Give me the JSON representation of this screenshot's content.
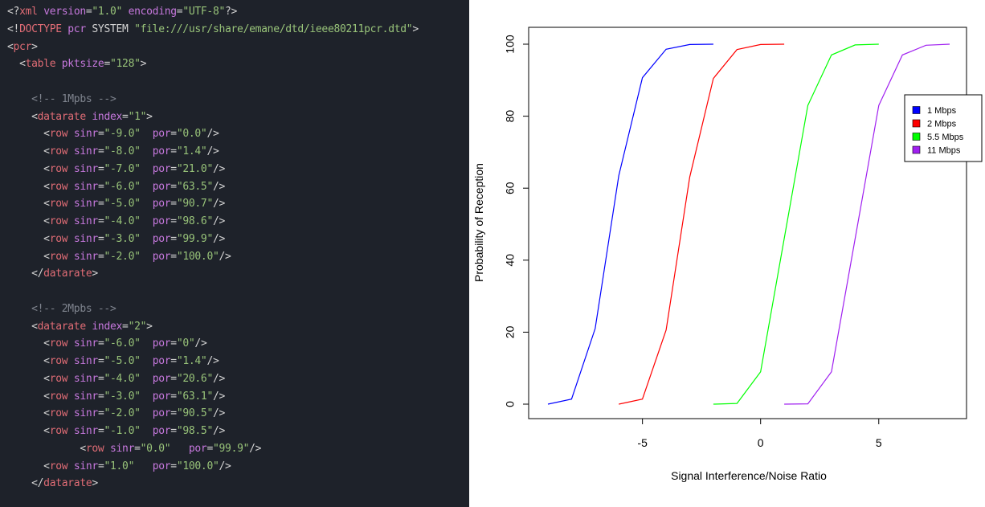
{
  "editor": {
    "lines": [
      [
        [
          "punct",
          "<?"
        ],
        [
          "tag",
          "xml"
        ],
        [
          "plain",
          " "
        ],
        [
          "attr",
          "version"
        ],
        [
          "punct",
          "="
        ],
        [
          "str",
          "\"1.0\""
        ],
        [
          "plain",
          " "
        ],
        [
          "attr",
          "encoding"
        ],
        [
          "punct",
          "="
        ],
        [
          "str",
          "\"UTF-8\""
        ],
        [
          "punct",
          "?>"
        ]
      ],
      [
        [
          "punct",
          "<!"
        ],
        [
          "tag",
          "DOCTYPE"
        ],
        [
          "plain",
          " "
        ],
        [
          "attr",
          "pcr"
        ],
        [
          "plain",
          " SYSTEM "
        ],
        [
          "str",
          "\"file:///usr/share/emane/dtd/ieee80211pcr.dtd\""
        ],
        [
          "punct",
          ">"
        ]
      ],
      [
        [
          "punct",
          "<"
        ],
        [
          "tag",
          "pcr"
        ],
        [
          "punct",
          ">"
        ]
      ],
      [
        [
          "plain",
          "  "
        ],
        [
          "punct",
          "<"
        ],
        [
          "tag",
          "table"
        ],
        [
          "plain",
          " "
        ],
        [
          "attr",
          "pktsize"
        ],
        [
          "punct",
          "="
        ],
        [
          "str",
          "\"128\""
        ],
        [
          "punct",
          ">"
        ]
      ],
      [],
      [
        [
          "plain",
          "    "
        ],
        [
          "comment",
          "<!-- 1Mpbs -->"
        ]
      ],
      [
        [
          "plain",
          "    "
        ],
        [
          "punct",
          "<"
        ],
        [
          "tag",
          "datarate"
        ],
        [
          "plain",
          " "
        ],
        [
          "attr",
          "index"
        ],
        [
          "punct",
          "="
        ],
        [
          "str",
          "\"1\""
        ],
        [
          "punct",
          ">"
        ]
      ],
      [
        [
          "plain",
          "      "
        ],
        [
          "punct",
          "<"
        ],
        [
          "tag",
          "row"
        ],
        [
          "plain",
          " "
        ],
        [
          "attr",
          "sinr"
        ],
        [
          "punct",
          "="
        ],
        [
          "str",
          "\"-9.0\""
        ],
        [
          "plain",
          "  "
        ],
        [
          "attr",
          "por"
        ],
        [
          "punct",
          "="
        ],
        [
          "str",
          "\"0.0\""
        ],
        [
          "punct",
          "/>"
        ]
      ],
      [
        [
          "plain",
          "      "
        ],
        [
          "punct",
          "<"
        ],
        [
          "tag",
          "row"
        ],
        [
          "plain",
          " "
        ],
        [
          "attr",
          "sinr"
        ],
        [
          "punct",
          "="
        ],
        [
          "str",
          "\"-8.0\""
        ],
        [
          "plain",
          "  "
        ],
        [
          "attr",
          "por"
        ],
        [
          "punct",
          "="
        ],
        [
          "str",
          "\"1.4\""
        ],
        [
          "punct",
          "/>"
        ]
      ],
      [
        [
          "plain",
          "      "
        ],
        [
          "punct",
          "<"
        ],
        [
          "tag",
          "row"
        ],
        [
          "plain",
          " "
        ],
        [
          "attr",
          "sinr"
        ],
        [
          "punct",
          "="
        ],
        [
          "str",
          "\"-7.0\""
        ],
        [
          "plain",
          "  "
        ],
        [
          "attr",
          "por"
        ],
        [
          "punct",
          "="
        ],
        [
          "str",
          "\"21.0\""
        ],
        [
          "punct",
          "/>"
        ]
      ],
      [
        [
          "plain",
          "      "
        ],
        [
          "punct",
          "<"
        ],
        [
          "tag",
          "row"
        ],
        [
          "plain",
          " "
        ],
        [
          "attr",
          "sinr"
        ],
        [
          "punct",
          "="
        ],
        [
          "str",
          "\"-6.0\""
        ],
        [
          "plain",
          "  "
        ],
        [
          "attr",
          "por"
        ],
        [
          "punct",
          "="
        ],
        [
          "str",
          "\"63.5\""
        ],
        [
          "punct",
          "/>"
        ]
      ],
      [
        [
          "plain",
          "      "
        ],
        [
          "punct",
          "<"
        ],
        [
          "tag",
          "row"
        ],
        [
          "plain",
          " "
        ],
        [
          "attr",
          "sinr"
        ],
        [
          "punct",
          "="
        ],
        [
          "str",
          "\"-5.0\""
        ],
        [
          "plain",
          "  "
        ],
        [
          "attr",
          "por"
        ],
        [
          "punct",
          "="
        ],
        [
          "str",
          "\"90.7\""
        ],
        [
          "punct",
          "/>"
        ]
      ],
      [
        [
          "plain",
          "      "
        ],
        [
          "punct",
          "<"
        ],
        [
          "tag",
          "row"
        ],
        [
          "plain",
          " "
        ],
        [
          "attr",
          "sinr"
        ],
        [
          "punct",
          "="
        ],
        [
          "str",
          "\"-4.0\""
        ],
        [
          "plain",
          "  "
        ],
        [
          "attr",
          "por"
        ],
        [
          "punct",
          "="
        ],
        [
          "str",
          "\"98.6\""
        ],
        [
          "punct",
          "/>"
        ]
      ],
      [
        [
          "plain",
          "      "
        ],
        [
          "punct",
          "<"
        ],
        [
          "tag",
          "row"
        ],
        [
          "plain",
          " "
        ],
        [
          "attr",
          "sinr"
        ],
        [
          "punct",
          "="
        ],
        [
          "str",
          "\"-3.0\""
        ],
        [
          "plain",
          "  "
        ],
        [
          "attr",
          "por"
        ],
        [
          "punct",
          "="
        ],
        [
          "str",
          "\"99.9\""
        ],
        [
          "punct",
          "/>"
        ]
      ],
      [
        [
          "plain",
          "      "
        ],
        [
          "punct",
          "<"
        ],
        [
          "tag",
          "row"
        ],
        [
          "plain",
          " "
        ],
        [
          "attr",
          "sinr"
        ],
        [
          "punct",
          "="
        ],
        [
          "str",
          "\"-2.0\""
        ],
        [
          "plain",
          "  "
        ],
        [
          "attr",
          "por"
        ],
        [
          "punct",
          "="
        ],
        [
          "str",
          "\"100.0\""
        ],
        [
          "punct",
          "/>"
        ]
      ],
      [
        [
          "plain",
          "    "
        ],
        [
          "punct",
          "</"
        ],
        [
          "tag",
          "datarate"
        ],
        [
          "punct",
          ">"
        ]
      ],
      [],
      [
        [
          "plain",
          "    "
        ],
        [
          "comment",
          "<!-- 2Mpbs -->"
        ]
      ],
      [
        [
          "plain",
          "    "
        ],
        [
          "punct",
          "<"
        ],
        [
          "tag",
          "datarate"
        ],
        [
          "plain",
          " "
        ],
        [
          "attr",
          "index"
        ],
        [
          "punct",
          "="
        ],
        [
          "str",
          "\"2\""
        ],
        [
          "punct",
          ">"
        ]
      ],
      [
        [
          "plain",
          "      "
        ],
        [
          "punct",
          "<"
        ],
        [
          "tag",
          "row"
        ],
        [
          "plain",
          " "
        ],
        [
          "attr",
          "sinr"
        ],
        [
          "punct",
          "="
        ],
        [
          "str",
          "\"-6.0\""
        ],
        [
          "plain",
          "  "
        ],
        [
          "attr",
          "por"
        ],
        [
          "punct",
          "="
        ],
        [
          "str",
          "\"0\""
        ],
        [
          "punct",
          "/>"
        ]
      ],
      [
        [
          "plain",
          "      "
        ],
        [
          "punct",
          "<"
        ],
        [
          "tag",
          "row"
        ],
        [
          "plain",
          " "
        ],
        [
          "attr",
          "sinr"
        ],
        [
          "punct",
          "="
        ],
        [
          "str",
          "\"-5.0\""
        ],
        [
          "plain",
          "  "
        ],
        [
          "attr",
          "por"
        ],
        [
          "punct",
          "="
        ],
        [
          "str",
          "\"1.4\""
        ],
        [
          "punct",
          "/>"
        ]
      ],
      [
        [
          "plain",
          "      "
        ],
        [
          "punct",
          "<"
        ],
        [
          "tag",
          "row"
        ],
        [
          "plain",
          " "
        ],
        [
          "attr",
          "sinr"
        ],
        [
          "punct",
          "="
        ],
        [
          "str",
          "\"-4.0\""
        ],
        [
          "plain",
          "  "
        ],
        [
          "attr",
          "por"
        ],
        [
          "punct",
          "="
        ],
        [
          "str",
          "\"20.6\""
        ],
        [
          "punct",
          "/>"
        ]
      ],
      [
        [
          "plain",
          "      "
        ],
        [
          "punct",
          "<"
        ],
        [
          "tag",
          "row"
        ],
        [
          "plain",
          " "
        ],
        [
          "attr",
          "sinr"
        ],
        [
          "punct",
          "="
        ],
        [
          "str",
          "\"-3.0\""
        ],
        [
          "plain",
          "  "
        ],
        [
          "attr",
          "por"
        ],
        [
          "punct",
          "="
        ],
        [
          "str",
          "\"63.1\""
        ],
        [
          "punct",
          "/>"
        ]
      ],
      [
        [
          "plain",
          "      "
        ],
        [
          "punct",
          "<"
        ],
        [
          "tag",
          "row"
        ],
        [
          "plain",
          " "
        ],
        [
          "attr",
          "sinr"
        ],
        [
          "punct",
          "="
        ],
        [
          "str",
          "\"-2.0\""
        ],
        [
          "plain",
          "  "
        ],
        [
          "attr",
          "por"
        ],
        [
          "punct",
          "="
        ],
        [
          "str",
          "\"90.5\""
        ],
        [
          "punct",
          "/>"
        ]
      ],
      [
        [
          "plain",
          "      "
        ],
        [
          "punct",
          "<"
        ],
        [
          "tag",
          "row"
        ],
        [
          "plain",
          " "
        ],
        [
          "attr",
          "sinr"
        ],
        [
          "punct",
          "="
        ],
        [
          "str",
          "\"-1.0\""
        ],
        [
          "plain",
          "  "
        ],
        [
          "attr",
          "por"
        ],
        [
          "punct",
          "="
        ],
        [
          "str",
          "\"98.5\""
        ],
        [
          "punct",
          "/>"
        ]
      ],
      [
        [
          "plain",
          "            "
        ],
        [
          "punct",
          "<"
        ],
        [
          "tag",
          "row"
        ],
        [
          "plain",
          " "
        ],
        [
          "attr",
          "sinr"
        ],
        [
          "punct",
          "="
        ],
        [
          "str",
          "\"0.0\""
        ],
        [
          "plain",
          "   "
        ],
        [
          "attr",
          "por"
        ],
        [
          "punct",
          "="
        ],
        [
          "str",
          "\"99.9\""
        ],
        [
          "punct",
          "/>"
        ]
      ],
      [
        [
          "plain",
          "      "
        ],
        [
          "punct",
          "<"
        ],
        [
          "tag",
          "row"
        ],
        [
          "plain",
          " "
        ],
        [
          "attr",
          "sinr"
        ],
        [
          "punct",
          "="
        ],
        [
          "str",
          "\"1.0\""
        ],
        [
          "plain",
          "   "
        ],
        [
          "attr",
          "por"
        ],
        [
          "punct",
          "="
        ],
        [
          "str",
          "\"100.0\""
        ],
        [
          "punct",
          "/>"
        ]
      ],
      [
        [
          "plain",
          "    "
        ],
        [
          "punct",
          "</"
        ],
        [
          "tag",
          "datarate"
        ],
        [
          "punct",
          ">"
        ]
      ]
    ]
  },
  "chart_data": {
    "type": "line",
    "title": "",
    "xlabel": "Signal Interference/Noise Ratio",
    "ylabel": "Probability of Reception",
    "xlim": [
      -9,
      8
    ],
    "ylim": [
      0,
      100
    ],
    "x_ticks": [
      -5,
      0,
      5
    ],
    "y_ticks": [
      0,
      20,
      40,
      60,
      80,
      100
    ],
    "grid": false,
    "legend_position": "right",
    "series": [
      {
        "name": "1 Mbps",
        "color": "#0000ff",
        "x": [
          -9,
          -8,
          -7,
          -6,
          -5,
          -4,
          -3,
          -2
        ],
        "y": [
          0.0,
          1.4,
          21.0,
          63.5,
          90.7,
          98.6,
          99.9,
          100.0
        ]
      },
      {
        "name": "2 Mbps",
        "color": "#ff0000",
        "x": [
          -6,
          -5,
          -4,
          -3,
          -2,
          -1,
          0,
          1
        ],
        "y": [
          0,
          1.4,
          20.6,
          63.1,
          90.5,
          98.5,
          99.9,
          100.0
        ]
      },
      {
        "name": "5.5 Mbps",
        "color": "#00ff00",
        "x": [
          -2,
          -1,
          0,
          1,
          2,
          3,
          4,
          5
        ],
        "y": [
          0,
          0.2,
          9,
          46,
          83,
          97,
          99.8,
          100
        ]
      },
      {
        "name": "11 Mbps",
        "color": "#a020f0",
        "x": [
          1,
          2,
          3,
          4,
          5,
          6,
          7,
          8
        ],
        "y": [
          0,
          0.1,
          9,
          46,
          83,
          97,
          99.7,
          100
        ]
      }
    ]
  }
}
